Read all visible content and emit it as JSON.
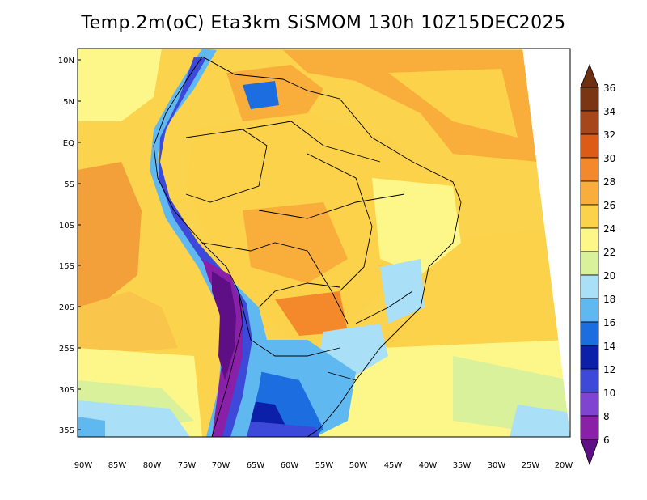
{
  "title": "Temp.2m(oC) Eta3km SiSMOM 130h 10Z15DEC2025",
  "map": {
    "region": "South America",
    "lat_labels": [
      "10N",
      "5N",
      "EQ",
      "5S",
      "10S",
      "15S",
      "20S",
      "25S",
      "30S",
      "35S"
    ],
    "lon_labels": [
      "90W",
      "85W",
      "80W",
      "75W",
      "70W",
      "65W",
      "60W",
      "55W",
      "50W",
      "45W",
      "40W",
      "35W",
      "30W",
      "25W",
      "20W"
    ]
  },
  "colorbar": {
    "labels": [
      "36",
      "34",
      "32",
      "30",
      "28",
      "26",
      "24",
      "22",
      "20",
      "18",
      "16",
      "14",
      "12",
      "10",
      "8",
      "6"
    ],
    "bins": [
      {
        "name": "cb-top-arrow",
        "color": "#6e2f12"
      },
      {
        "name": "cb-34-36",
        "color": "#7a3512"
      },
      {
        "name": "cb-32-34",
        "color": "#a5471a"
      },
      {
        "name": "cb-30-32",
        "color": "#dd5a17"
      },
      {
        "name": "cb-28-30",
        "color": "#f4892b"
      },
      {
        "name": "cb-26-28",
        "color": "#f9ad3a"
      },
      {
        "name": "cb-24-26",
        "color": "#fbd24a"
      },
      {
        "name": "cb-22-24",
        "color": "#fdf78a"
      },
      {
        "name": "cb-20-22",
        "color": "#d8f19a"
      },
      {
        "name": "cb-18-20",
        "color": "#a9dff7"
      },
      {
        "name": "cb-16-18",
        "color": "#60b8f0"
      },
      {
        "name": "cb-14-16",
        "color": "#1c6ee0"
      },
      {
        "name": "cb-12-14",
        "color": "#0b1fa8"
      },
      {
        "name": "cb-10-12",
        "color": "#3d49d8"
      },
      {
        "name": "cb-8-10",
        "color": "#7f45d0"
      },
      {
        "name": "cb-6-8",
        "color": "#8a1fa8"
      },
      {
        "name": "cb-bottom-arrow",
        "color": "#5e0f86"
      }
    ]
  }
}
